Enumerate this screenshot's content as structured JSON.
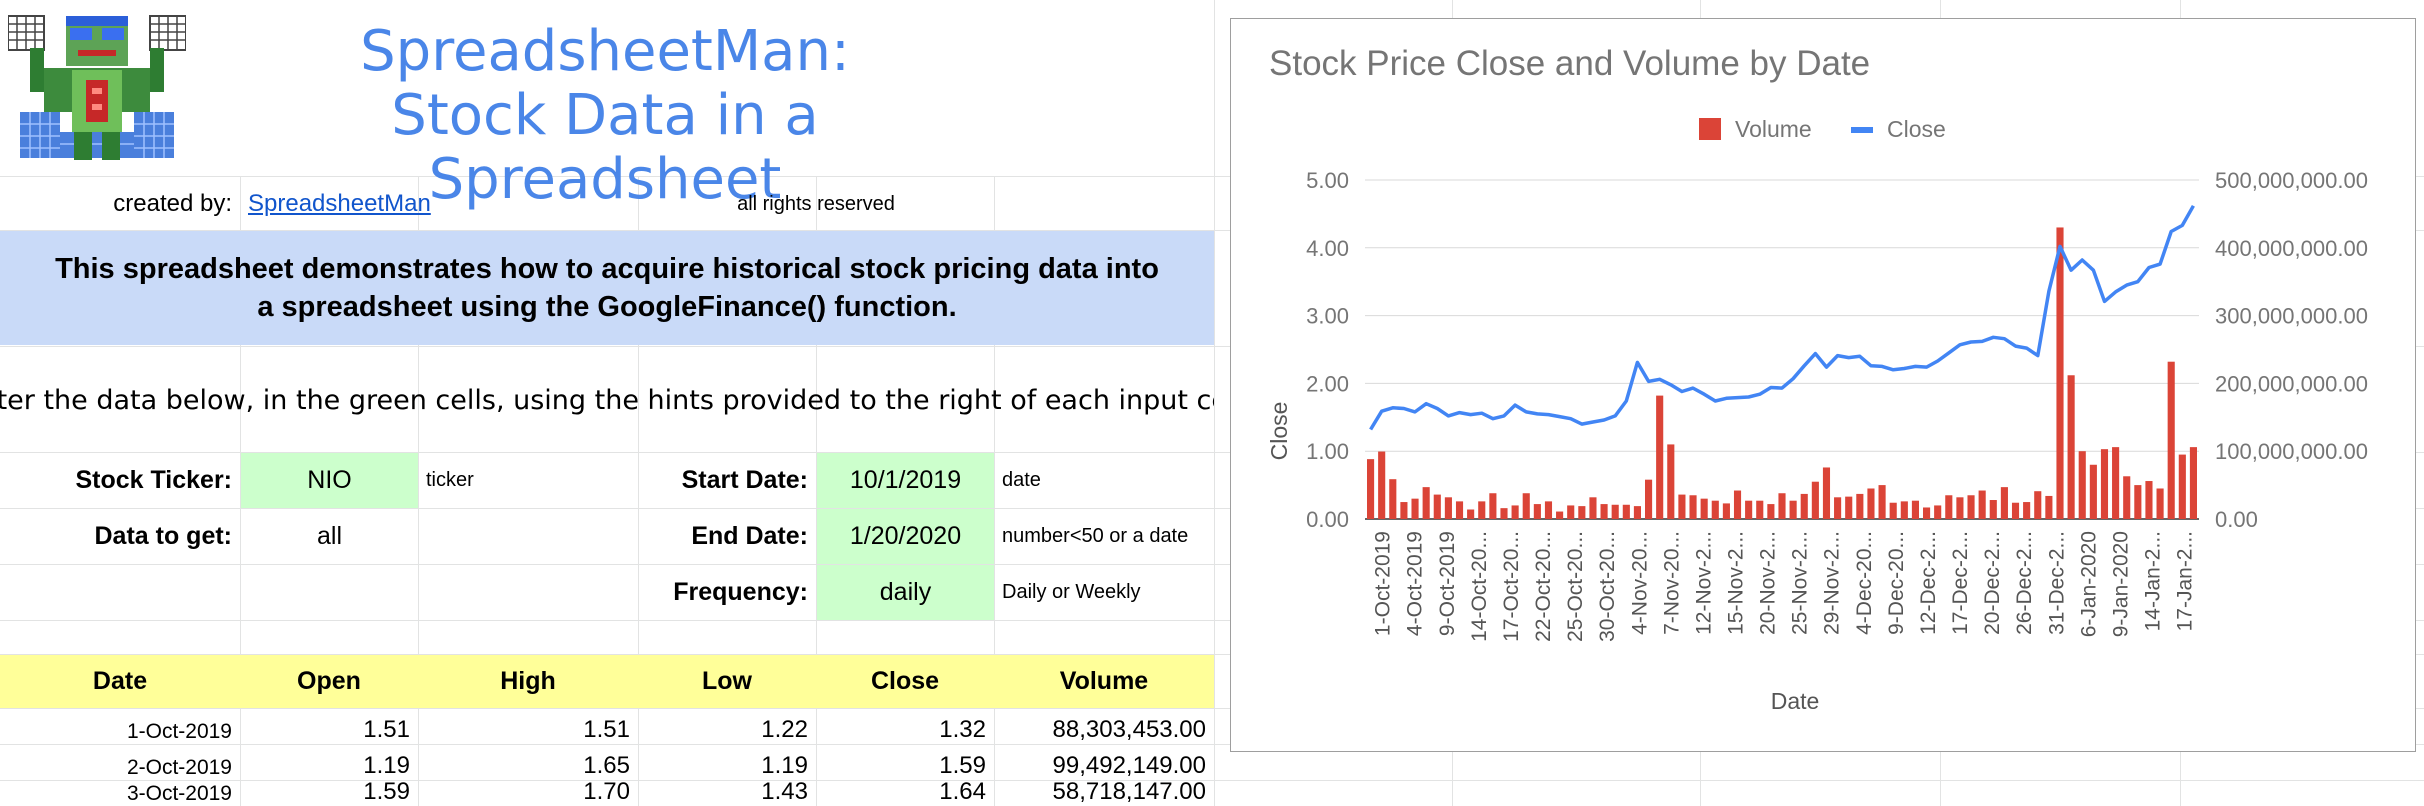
{
  "header": {
    "title_line1": "SpreadsheetMan:",
    "title_line2": "Stock Data in a Spreadsheet",
    "created_by_label": "created by:",
    "created_by_link": "SpreadsheetMan",
    "rights": "all rights reserved"
  },
  "banner": {
    "line1": "This spreadsheet demonstrates how to acquire historical stock pricing data into",
    "line2": "a spreadsheet using the GoogleFinance() function."
  },
  "instructions": "Enter the data below, in the green cells, using the hints provided to the right of each input cell.",
  "inputs": {
    "ticker_label": "Stock Ticker:",
    "ticker_value": "NIO",
    "ticker_hint": "ticker",
    "data_label": "Data to get:",
    "data_value": "all",
    "start_label": "Start Date:",
    "start_value": "10/1/2019",
    "start_hint": "date",
    "end_label": "End Date:",
    "end_value": "1/20/2020",
    "end_hint": "number<50 or a date",
    "freq_label": "Frequency:",
    "freq_value": "daily",
    "freq_hint": "Daily or Weekly"
  },
  "table": {
    "headers": [
      "Date",
      "Open",
      "High",
      "Low",
      "Close",
      "Volume"
    ],
    "rows": [
      [
        "1-Oct-2019",
        "1.51",
        "1.51",
        "1.22",
        "1.32",
        "88,303,453.00"
      ],
      [
        "2-Oct-2019",
        "1.19",
        "1.65",
        "1.19",
        "1.59",
        "99,492,149.00"
      ],
      [
        "3-Oct-2019",
        "1.59",
        "1.70",
        "1.43",
        "1.64",
        "58,718,147.00"
      ]
    ]
  },
  "colors": {
    "title_blue": "#4a86e8",
    "input_green": "#ccffcc",
    "header_yellow": "#ffff99",
    "banner_blue": "#c9daf8",
    "volume_red": "#db4437",
    "close_blue": "#4285f4"
  },
  "chart_data": {
    "type": "bar",
    "title": "Stock Price Close and Volume by Date",
    "xlabel": "Date",
    "ylabel": "Close",
    "legend_position": "top",
    "grid": true,
    "ylim_left": [
      0,
      5
    ],
    "ylim_right": [
      0,
      500000000
    ],
    "left_ticks": [
      "0.00",
      "1.00",
      "2.00",
      "3.00",
      "4.00",
      "5.00"
    ],
    "right_ticks": [
      "0.00",
      "100,000,000.00",
      "200,000,000.00",
      "300,000,000.00",
      "400,000,000.00",
      "500,000,000.00"
    ],
    "x_tick_labels": [
      "1-Oct-2019",
      "4-Oct-2019",
      "9-Oct-2019",
      "14-Oct-20...",
      "17-Oct-20...",
      "22-Oct-20...",
      "25-Oct-20...",
      "30-Oct-20...",
      "4-Nov-20...",
      "7-Nov-20...",
      "12-Nov-2...",
      "15-Nov-2...",
      "20-Nov-2...",
      "25-Nov-2...",
      "29-Nov-2...",
      "4-Dec-20...",
      "9-Dec-20...",
      "12-Dec-2...",
      "17-Dec-2...",
      "20-Dec-2...",
      "26-Dec-2...",
      "31-Dec-2...",
      "6-Jan-2020",
      "9-Jan-2020",
      "14-Jan-2...",
      "17-Jan-2..."
    ],
    "series": [
      {
        "name": "Volume",
        "kind": "bar",
        "axis": "right",
        "values": [
          88303453,
          99492149,
          58718147,
          25000000,
          30000000,
          47000000,
          36000000,
          32000000,
          26000000,
          14000000,
          26000000,
          38000000,
          16000000,
          20000000,
          38000000,
          22000000,
          26000000,
          11000000,
          20000000,
          19000000,
          32000000,
          22000000,
          21000000,
          21000000,
          19000000,
          58000000,
          182000000,
          110000000,
          36000000,
          35000000,
          30000000,
          27000000,
          23000000,
          42000000,
          27000000,
          27000000,
          22000000,
          38000000,
          27000000,
          37000000,
          55000000,
          76000000,
          32000000,
          33000000,
          37000000,
          45000000,
          50000000,
          24000000,
          26000000,
          27000000,
          17000000,
          20000000,
          35000000,
          32000000,
          35000000,
          42000000,
          28000000,
          47000000,
          24000000,
          25000000,
          41000000,
          34000000,
          430000000,
          212000000,
          100000000,
          80000000,
          103000000,
          106000000,
          63000000,
          50000000,
          56000000,
          45000000,
          232000000,
          95000000,
          106000000
        ]
      },
      {
        "name": "Close",
        "kind": "line",
        "axis": "left",
        "values": [
          1.32,
          1.59,
          1.64,
          1.63,
          1.58,
          1.7,
          1.63,
          1.52,
          1.57,
          1.54,
          1.56,
          1.48,
          1.52,
          1.68,
          1.58,
          1.55,
          1.54,
          1.51,
          1.48,
          1.4,
          1.43,
          1.46,
          1.52,
          1.74,
          2.31,
          2.03,
          2.06,
          1.98,
          1.88,
          1.93,
          1.84,
          1.74,
          1.78,
          1.79,
          1.8,
          1.84,
          1.94,
          1.93,
          2.07,
          2.26,
          2.44,
          2.24,
          2.41,
          2.38,
          2.4,
          2.26,
          2.25,
          2.2,
          2.22,
          2.25,
          2.24,
          2.33,
          2.45,
          2.57,
          2.61,
          2.62,
          2.68,
          2.66,
          2.55,
          2.52,
          2.41,
          3.36,
          4.02,
          3.67,
          3.82,
          3.67,
          3.21,
          3.35,
          3.45,
          3.5,
          3.71,
          3.76,
          4.24,
          4.33,
          4.62
        ]
      }
    ]
  }
}
